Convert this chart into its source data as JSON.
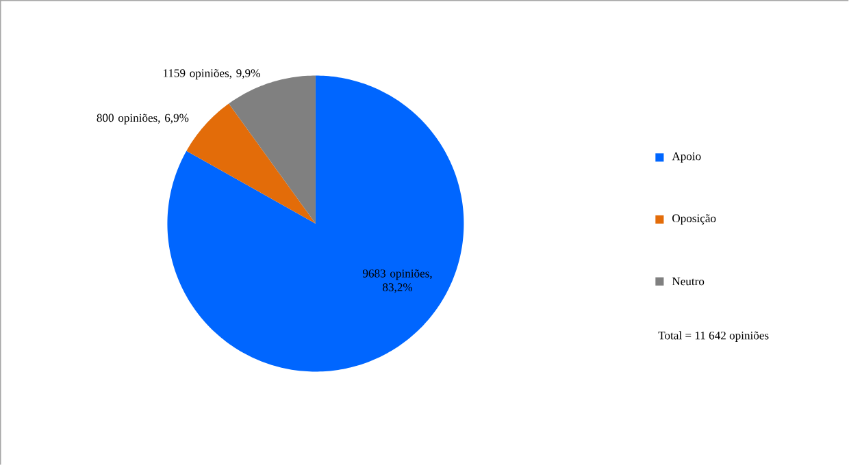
{
  "chart_data": {
    "type": "pie",
    "categories": [
      "Apoio",
      "Oposição",
      "Neutro"
    ],
    "values": [
      9683,
      800,
      1159
    ],
    "colors": [
      "#0066ff",
      "#e36c09",
      "#808080"
    ],
    "value_labels": [
      "9683 opiniões, 83,2%",
      "800 opiniões, 6,9%",
      "1159 opiniões, 9,9%"
    ],
    "legend": "right",
    "annotations": [
      "Total = 11 642 opiniões"
    ]
  }
}
